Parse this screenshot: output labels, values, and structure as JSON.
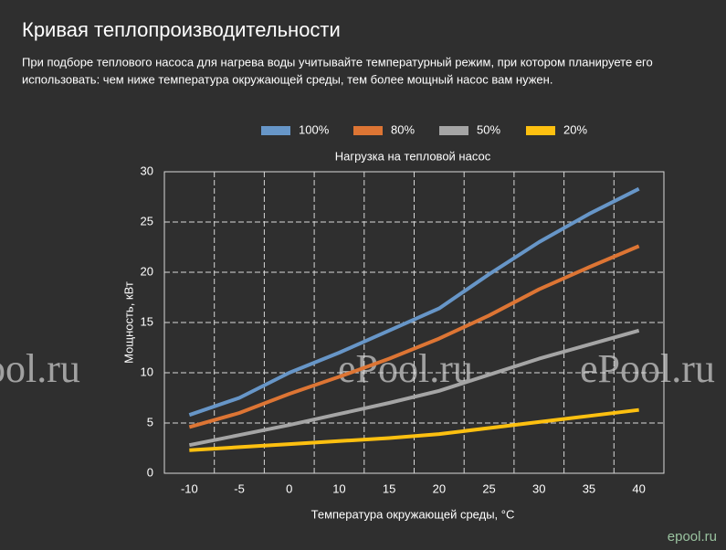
{
  "header": {
    "title": "Кривая теплопроизводительности",
    "description": [
      "При подборе теплового насоса для нагрева воды учитывайте температурный режим, при котором планируете его",
      "использовать: чем ниже температура окружающей среды, тем более мощный насос вам нужен."
    ]
  },
  "watermark": "ePool.ru",
  "logo": "epool.ru",
  "chart_data": {
    "type": "line",
    "title": "Нагрузка на тепловой насос",
    "x_label": "Температура окружающей среды, °C",
    "y_label": "Мощность, кВт",
    "categories": [
      "-10",
      "-5",
      "0",
      "10",
      "15",
      "20",
      "25",
      "30",
      "35",
      "40"
    ],
    "series": [
      {
        "name": "100%",
        "color": "#6796c8",
        "values": [
          5.8,
          7.5,
          10,
          12,
          14.2,
          16.4,
          19.8,
          23,
          25.8,
          28.3
        ]
      },
      {
        "name": "80%",
        "color": "#dd7534",
        "values": [
          4.6,
          6,
          7.9,
          9.6,
          11.4,
          13.4,
          15.7,
          18.3,
          20.5,
          22.6
        ]
      },
      {
        "name": "50%",
        "color": "#a5a5a5",
        "values": [
          2.8,
          3.8,
          4.8,
          5.9,
          7,
          8.2,
          9.8,
          11.4,
          12.8,
          14.2
        ]
      },
      {
        "name": "20%",
        "color": "#fdc010",
        "values": [
          2.3,
          2.6,
          2.9,
          3.2,
          3.5,
          3.9,
          4.5,
          5.1,
          5.7,
          6.3
        ]
      }
    ],
    "ylim": [
      0,
      30
    ],
    "yticks": [
      0,
      5,
      10,
      15,
      20,
      25,
      30
    ],
    "grid": true,
    "legend": "top"
  }
}
